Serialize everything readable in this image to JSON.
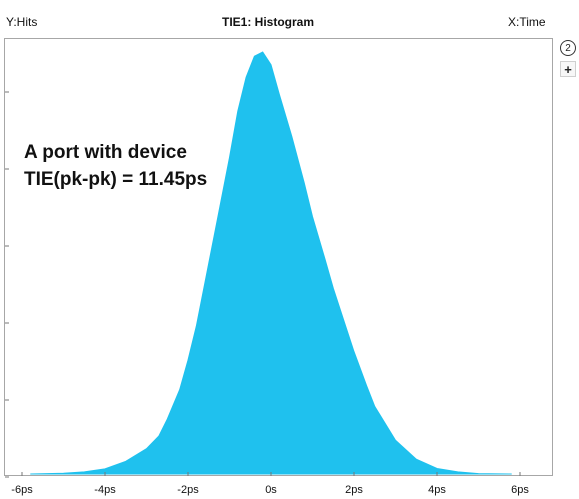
{
  "header": {
    "y_axis": "Y:Hits",
    "title": "TIE1: Histogram",
    "x_axis": "X:Time"
  },
  "side_buttons": {
    "number": "2",
    "add": "+"
  },
  "annotations": [
    "A port with device",
    "TIE(pk-pk) = 11.45ps"
  ],
  "colors": {
    "fill": "#1fc1ee",
    "frame": "#a7a7a7"
  },
  "chart_data": {
    "type": "area",
    "title": "TIE1: Histogram",
    "xlabel": "X:Time",
    "ylabel": "Y:Hits",
    "x_unit": "ps",
    "xlim": [
      -6,
      6
    ],
    "x_ticks": [
      -6,
      -4,
      -2,
      0,
      2,
      4,
      6
    ],
    "x_tick_labels": [
      "-6ps",
      "-4ps",
      "-2ps",
      "0s",
      "2ps",
      "4ps",
      "6ps"
    ],
    "grid": false,
    "series": [
      {
        "x": [
          -5.8,
          -5.0,
          -4.5,
          -4.0,
          -3.5,
          -3.0,
          -2.7,
          -2.5,
          -2.2,
          -2.0,
          -1.8,
          -1.5,
          -1.3,
          -1.0,
          -0.8,
          -0.6,
          -0.4,
          -0.2,
          0.0,
          0.2,
          0.5,
          0.8,
          1.0,
          1.3,
          1.5,
          1.8,
          2.0,
          2.3,
          2.5,
          3.0,
          3.5,
          4.0,
          4.5,
          5.0,
          5.8
        ],
        "values": [
          0.0,
          0.002,
          0.005,
          0.012,
          0.03,
          0.06,
          0.09,
          0.13,
          0.2,
          0.27,
          0.35,
          0.5,
          0.6,
          0.75,
          0.86,
          0.94,
          0.99,
          1.0,
          0.97,
          0.9,
          0.8,
          0.69,
          0.61,
          0.51,
          0.44,
          0.35,
          0.29,
          0.21,
          0.16,
          0.08,
          0.035,
          0.013,
          0.005,
          0.001,
          0.0
        ]
      }
    ]
  }
}
